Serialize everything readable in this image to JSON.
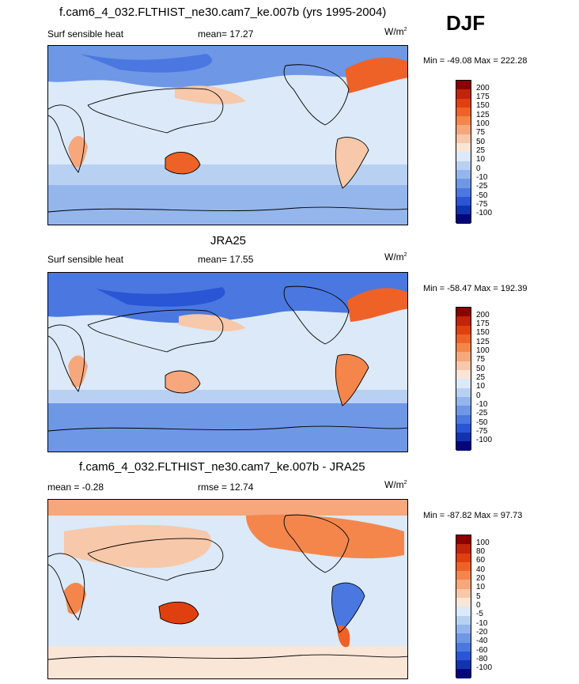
{
  "season": "DJF",
  "panels": [
    {
      "title": "f.cam6_4_032.FLTHIST_ne30.cam7_ke.007b (yrs 1995-2004)",
      "left_label": "Surf sensible heat",
      "center_label": "mean=  17.27",
      "units_base": "W/m",
      "units_exp": "2",
      "minmax": "Min = -49.08 Max = 222.28",
      "colorbar_labels": [
        "200",
        "175",
        "150",
        "125",
        "100",
        "75",
        "50",
        "25",
        "10",
        "0",
        "-10",
        "-25",
        "-50",
        "-75",
        "-100"
      ],
      "colorbar_colors": [
        "#8b0000",
        "#c1240b",
        "#e0400f",
        "#ee6228",
        "#f4864c",
        "#f6a77c",
        "#f7c8a9",
        "#fae6d7",
        "#dbe9f8",
        "#b8d0f2",
        "#94b6ec",
        "#6e97e6",
        "#4a78e0",
        "#2a55d4",
        "#1233b0",
        "#04067a"
      ]
    },
    {
      "title": "JRA25",
      "left_label": "Surf sensible heat",
      "center_label": "mean=  17.55",
      "units_base": "W/m",
      "units_exp": "2",
      "minmax": "Min = -58.47 Max = 192.39",
      "colorbar_labels": [
        "200",
        "175",
        "150",
        "125",
        "100",
        "75",
        "50",
        "25",
        "10",
        "0",
        "-10",
        "-25",
        "-50",
        "-75",
        "-100"
      ],
      "colorbar_colors": [
        "#8b0000",
        "#c1240b",
        "#e0400f",
        "#ee6228",
        "#f4864c",
        "#f6a77c",
        "#f7c8a9",
        "#fae6d7",
        "#dbe9f8",
        "#b8d0f2",
        "#94b6ec",
        "#6e97e6",
        "#4a78e0",
        "#2a55d4",
        "#1233b0",
        "#04067a"
      ]
    },
    {
      "title": "f.cam6_4_032.FLTHIST_ne30.cam7_ke.007b - JRA25",
      "left_label": "mean =  -0.28",
      "center_label": "rmse =  12.74",
      "units_base": "W/m",
      "units_exp": "2",
      "minmax": "Min = -87.82 Max =  97.73",
      "colorbar_labels": [
        "100",
        "80",
        "60",
        "40",
        "20",
        "10",
        "5",
        "0",
        "-5",
        "-10",
        "-20",
        "-40",
        "-60",
        "-80",
        "-100"
      ],
      "colorbar_colors": [
        "#8b0000",
        "#c1240b",
        "#e0400f",
        "#ee6228",
        "#f4864c",
        "#f6a77c",
        "#f7c8a9",
        "#fae6d7",
        "#dbe9f8",
        "#b8d0f2",
        "#94b6ec",
        "#6e97e6",
        "#4a78e0",
        "#2a55d4",
        "#1233b0",
        "#04067a"
      ]
    }
  ]
}
